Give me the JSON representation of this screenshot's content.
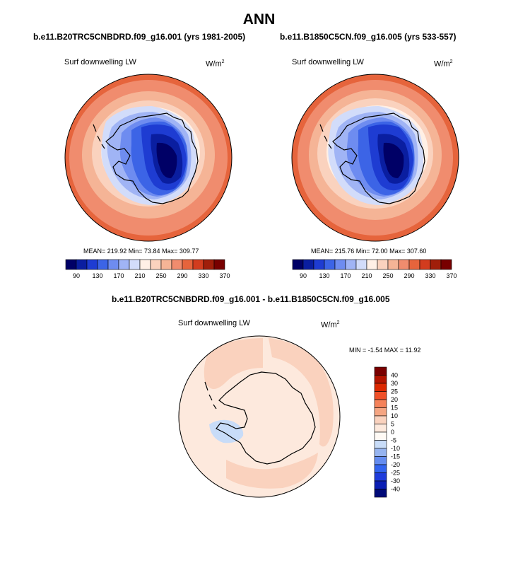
{
  "page": {
    "title": "ANN"
  },
  "panels": [
    {
      "case_title": "b.e11.B20TRC5CNBDRD.f09_g16.001 (yrs 1981-2005)",
      "variable": "Surf downwelling LW",
      "units_base": "W/m",
      "units_exp": "2",
      "stats": "MEAN= 219.92  Min=  73.84  Max= 309.77"
    },
    {
      "case_title": "b.e11.B1850C5CN.f09_g16.005 (yrs 533-557)",
      "variable": "Surf downwelling LW",
      "units_base": "W/m",
      "units_exp": "2",
      "stats": "MEAN= 215.76  Min=  72.00  Max= 307.60"
    }
  ],
  "difference": {
    "title": "b.e11.B20TRC5CNBDRD.f09_g16.001 - b.e11.B1850C5CN.f09_g16.005",
    "variable": "Surf downwelling LW",
    "units_base": "W/m",
    "units_exp": "2",
    "stats": "MIN =  -1.54 MAX =  11.92"
  },
  "chart_data": [
    {
      "type": "heatmap",
      "projection": "south polar stereographic",
      "colorbar_orientation": "horizontal",
      "colorbar_ticks": [
        "90",
        "130",
        "170",
        "210",
        "250",
        "290",
        "330",
        "370"
      ],
      "colorbar_colors": [
        "#000066",
        "#0a1ea0",
        "#1e3cd2",
        "#3c64e6",
        "#6e8cf0",
        "#a0b4f5",
        "#d2dcfa",
        "#fff0e6",
        "#fad2be",
        "#f5b496",
        "#f08c6e",
        "#e6643c",
        "#d23c1e",
        "#a01e0a",
        "#780000"
      ],
      "mean": 219.92,
      "min": 73.84,
      "max": 309.77
    },
    {
      "type": "heatmap",
      "projection": "south polar stereographic",
      "colorbar_orientation": "horizontal",
      "colorbar_ticks": [
        "90",
        "130",
        "170",
        "210",
        "250",
        "290",
        "330",
        "370"
      ],
      "colorbar_colors": [
        "#000066",
        "#0a1ea0",
        "#1e3cd2",
        "#3c64e6",
        "#6e8cf0",
        "#a0b4f5",
        "#d2dcfa",
        "#fff0e6",
        "#fad2be",
        "#f5b496",
        "#f08c6e",
        "#e6643c",
        "#d23c1e",
        "#a01e0a",
        "#780000"
      ],
      "mean": 215.76,
      "min": 72.0,
      "max": 307.6
    },
    {
      "type": "heatmap",
      "projection": "south polar stereographic",
      "colorbar_orientation": "vertical",
      "colorbar_ticks": [
        "40",
        "30",
        "25",
        "20",
        "15",
        "10",
        "5",
        "0",
        "-5",
        "-10",
        "-15",
        "-20",
        "-25",
        "-30",
        "-40"
      ],
      "colorbar_colors": [
        "#7a0000",
        "#b41400",
        "#dc2800",
        "#f05028",
        "#f5825a",
        "#f5a582",
        "#fad2be",
        "#fde9dd",
        "#fffaf5",
        "#c8dcf8",
        "#96b4f0",
        "#648cf0",
        "#3264f0",
        "#1e3cdc",
        "#0a1eb4",
        "#000a78"
      ],
      "min": -1.54,
      "max": 11.92
    }
  ]
}
